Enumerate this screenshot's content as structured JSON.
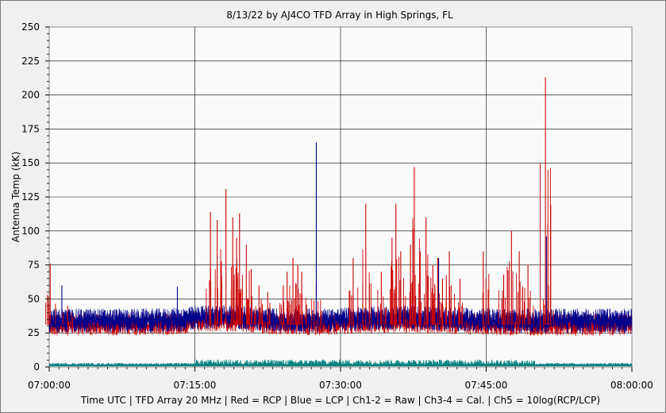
{
  "chart_data": {
    "type": "line",
    "title": "8/13/22  by  AJ4CO TFD Array  in  High Springs, FL",
    "xlabel": "Time UTC | TFD Array 20 MHz | Red = RCP | Blue = LCP | Ch1-2 = Raw | Ch3-4 = Cal. | Ch5 = 10log(RCP/LCP)",
    "ylabel": "Antenna Temp (kK)",
    "ylim": [
      0,
      250
    ],
    "xlim_minutes": [
      0,
      60
    ],
    "x_tick_labels": [
      "07:00:00",
      "07:15:00",
      "07:30:00",
      "07:45:00",
      "08:00:00"
    ],
    "y_tick_labels": [
      "0",
      "25",
      "50",
      "75",
      "100",
      "125",
      "150",
      "175",
      "200",
      "225",
      "250"
    ],
    "grid": true,
    "colors": {
      "rcp": "#cc0000",
      "lcp": "#00008b",
      "ratio": "#008080"
    },
    "series": [
      {
        "key": "rcp",
        "baseline": 31,
        "spikes": [
          {
            "t": 0.1,
            "v": 76
          },
          {
            "t": 1.9,
            "v": 45
          },
          {
            "t": 16.6,
            "v": 114
          },
          {
            "t": 17.3,
            "v": 108
          },
          {
            "t": 18.2,
            "v": 131
          },
          {
            "t": 18.9,
            "v": 110
          },
          {
            "t": 19.3,
            "v": 95
          },
          {
            "t": 19.6,
            "v": 113
          },
          {
            "t": 20.3,
            "v": 90
          },
          {
            "t": 20.8,
            "v": 72
          },
          {
            "t": 21.6,
            "v": 60
          },
          {
            "t": 22.5,
            "v": 55
          },
          {
            "t": 24.1,
            "v": 60
          },
          {
            "t": 24.5,
            "v": 70
          },
          {
            "t": 25.1,
            "v": 80
          },
          {
            "t": 25.6,
            "v": 75
          },
          {
            "t": 26.0,
            "v": 70
          },
          {
            "t": 27.5,
            "v": 60
          },
          {
            "t": 31.3,
            "v": 80
          },
          {
            "t": 32.6,
            "v": 120
          },
          {
            "t": 34.2,
            "v": 70
          },
          {
            "t": 35.3,
            "v": 95
          },
          {
            "t": 35.7,
            "v": 120
          },
          {
            "t": 36.2,
            "v": 85
          },
          {
            "t": 37.2,
            "v": 90
          },
          {
            "t": 37.6,
            "v": 147
          },
          {
            "t": 38.2,
            "v": 85
          },
          {
            "t": 38.8,
            "v": 110
          },
          {
            "t": 39.5,
            "v": 75
          },
          {
            "t": 40.0,
            "v": 80
          },
          {
            "t": 40.5,
            "v": 65
          },
          {
            "t": 41.2,
            "v": 85
          },
          {
            "t": 42.3,
            "v": 65
          },
          {
            "t": 44.7,
            "v": 85
          },
          {
            "t": 46.8,
            "v": 68
          },
          {
            "t": 47.6,
            "v": 100
          },
          {
            "t": 48.4,
            "v": 85
          },
          {
            "t": 49.3,
            "v": 75
          },
          {
            "t": 51.1,
            "v": 213
          },
          {
            "t": 51.4,
            "v": 60
          }
        ]
      },
      {
        "key": "lcp",
        "baseline": 34,
        "spikes": [
          {
            "t": 1.3,
            "v": 60
          },
          {
            "t": 13.2,
            "v": 59
          },
          {
            "t": 27.5,
            "v": 165
          },
          {
            "t": 40.1,
            "v": 80
          },
          {
            "t": 51.2,
            "v": 96
          }
        ]
      },
      {
        "key": "ratio",
        "baseline": 1.5
      }
    ]
  }
}
